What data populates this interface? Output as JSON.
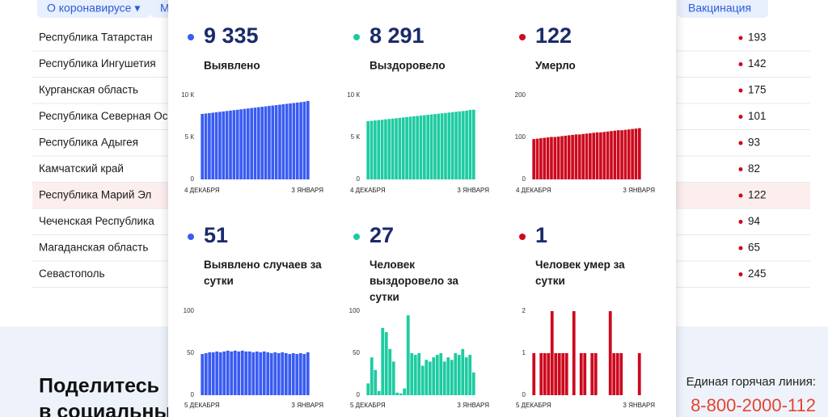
{
  "nav": {
    "items": [
      "О коронавирусе ▾",
      "М",
      "Вакцинация"
    ]
  },
  "table": {
    "rows": [
      [
        "Республика Татарстан",
        "193"
      ],
      [
        "Республика Ингушетия",
        "142"
      ],
      [
        "Курганская область",
        "175"
      ],
      [
        "Республика Северная Осетия",
        "101"
      ],
      [
        "Республика Адыгея",
        "93"
      ],
      [
        "Камчатский край",
        "82"
      ],
      [
        "Республика Марий Эл",
        "122"
      ],
      [
        "Чеченская Республика",
        "94"
      ],
      [
        "Магаданская область",
        "65"
      ],
      [
        "Севастополь",
        "245"
      ]
    ]
  },
  "footer": {
    "share_title": [
      "Поделитесь",
      "в социальных сетях"
    ],
    "hotline_label": "Единая горячая линия:",
    "hotline_phone": "8-800-2000-112"
  },
  "popup": {
    "panels": [
      {
        "type": "bar",
        "total": "9 335",
        "label": "Выявлено",
        "color": "#3a5cf2",
        "ylim": [
          0,
          10000
        ],
        "yticks": [
          0,
          {
            "value": 5000,
            "label": "5 К"
          },
          {
            "value": 10000,
            "label": "10 К"
          }
        ],
        "categories": [
          "4 ДЕКАБРЯ",
          null,
          null,
          null,
          null,
          null,
          null,
          null,
          null,
          null,
          null,
          null,
          null,
          null,
          null,
          null,
          null,
          null,
          null,
          null,
          null,
          null,
          null,
          null,
          null,
          null,
          null,
          null,
          null,
          null,
          "3 ЯНВАРЯ"
        ],
        "values": [
          7790,
          7840,
          7890,
          7940,
          7990,
          8040,
          8090,
          8140,
          8190,
          8240,
          8290,
          8340,
          8390,
          8440,
          8490,
          8540,
          8590,
          8640,
          8690,
          8740,
          8790,
          8840,
          8890,
          8940,
          8990,
          9040,
          9090,
          9140,
          9190,
          9250,
          9335
        ]
      },
      {
        "type": "bar",
        "total": "8 291",
        "label": "Выздоровело",
        "color": "#1ecba1",
        "ylim": [
          0,
          10000
        ],
        "yticks": [
          0,
          {
            "value": 5000,
            "label": "5 К"
          },
          {
            "value": 10000,
            "label": "10 К"
          }
        ],
        "categories": [
          "4 ДЕКАБРЯ",
          null,
          null,
          null,
          null,
          null,
          null,
          null,
          null,
          null,
          null,
          null,
          null,
          null,
          null,
          null,
          null,
          null,
          null,
          null,
          null,
          null,
          null,
          null,
          null,
          null,
          null,
          null,
          null,
          null,
          "3 ЯНВАРЯ"
        ],
        "values": [
          6920,
          6965,
          7010,
          7055,
          7100,
          7145,
          7190,
          7235,
          7280,
          7325,
          7370,
          7415,
          7460,
          7505,
          7550,
          7595,
          7640,
          7685,
          7730,
          7775,
          7820,
          7865,
          7910,
          7955,
          8000,
          8045,
          8090,
          8135,
          8180,
          8264,
          8291
        ]
      },
      {
        "type": "bar",
        "total": "122",
        "label": "Умерло",
        "color": "#cc0a1e",
        "ylim": [
          0,
          200
        ],
        "yticks": [
          0,
          100,
          200
        ],
        "categories": [
          "4 ДЕКАБРЯ",
          null,
          null,
          null,
          null,
          null,
          null,
          null,
          null,
          null,
          null,
          null,
          null,
          null,
          null,
          null,
          null,
          null,
          null,
          null,
          null,
          null,
          null,
          null,
          null,
          null,
          null,
          null,
          null,
          null,
          "3 ЯНВАРЯ"
        ],
        "values": [
          96,
          97,
          98,
          99,
          100,
          101,
          101,
          102,
          103,
          104,
          105,
          106,
          107,
          107,
          108,
          109,
          110,
          111,
          112,
          112,
          113,
          114,
          115,
          116,
          117,
          117,
          118,
          119,
          120,
          121,
          122
        ]
      },
      {
        "type": "bar",
        "total": "51",
        "label": "Выявлено случаев за сутки",
        "color": "#3a5cf2",
        "ylim": [
          0,
          100
        ],
        "yticks": [
          0,
          50,
          100
        ],
        "categories": [
          "5 ДЕКАБРЯ",
          null,
          null,
          null,
          null,
          null,
          null,
          null,
          null,
          null,
          null,
          null,
          null,
          null,
          null,
          null,
          null,
          null,
          null,
          null,
          null,
          null,
          null,
          null,
          null,
          null,
          null,
          null,
          null,
          "3 ЯНВАРЯ"
        ],
        "values": [
          49,
          50,
          51,
          51,
          52,
          51,
          52,
          53,
          52,
          53,
          52,
          53,
          52,
          52,
          51,
          52,
          51,
          52,
          51,
          50,
          51,
          50,
          51,
          50,
          49,
          50,
          49,
          50,
          49,
          51
        ]
      },
      {
        "type": "bar",
        "total": "27",
        "label": "Человек выздоровело за сутки",
        "color": "#1ecba1",
        "ylim": [
          0,
          100
        ],
        "yticks": [
          0,
          50,
          100
        ],
        "categories": [
          "5 ДЕКАБРЯ",
          null,
          null,
          null,
          null,
          null,
          null,
          null,
          null,
          null,
          null,
          null,
          null,
          null,
          null,
          null,
          null,
          null,
          null,
          null,
          null,
          null,
          null,
          null,
          null,
          null,
          null,
          null,
          null,
          "3 ЯНВАРЯ"
        ],
        "values": [
          14,
          45,
          30,
          5,
          80,
          75,
          55,
          40,
          3,
          2,
          8,
          95,
          50,
          48,
          50,
          35,
          42,
          40,
          45,
          48,
          50,
          40,
          45,
          42,
          50,
          48,
          55,
          45,
          48,
          27
        ]
      },
      {
        "type": "bar",
        "total": "1",
        "label": "Человек умер за сутки",
        "color": "#cc0a1e",
        "ylim": [
          0,
          2
        ],
        "yticks": [
          0,
          1,
          2
        ],
        "categories": [
          "5 ДЕКАБРЯ",
          null,
          null,
          null,
          null,
          null,
          null,
          null,
          null,
          null,
          null,
          null,
          null,
          null,
          null,
          null,
          null,
          null,
          null,
          null,
          null,
          null,
          null,
          null,
          null,
          null,
          null,
          null,
          null,
          "3 ЯНВАРЯ"
        ],
        "values": [
          1,
          0,
          1,
          1,
          1,
          2,
          1,
          1,
          1,
          1,
          0,
          2,
          0,
          1,
          1,
          0,
          1,
          1,
          0,
          0,
          0,
          2,
          1,
          1,
          1,
          0,
          0,
          0,
          0,
          1
        ]
      }
    ]
  }
}
